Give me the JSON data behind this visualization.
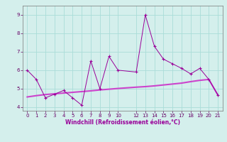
{
  "xlabel": "Windchill (Refroidissement éolien,°C)",
  "bg_color": "#d4efec",
  "grid_color": "#aaddd8",
  "line_color": "#990099",
  "line_color2": "#cc44cc",
  "series1_x": [
    0,
    1,
    2,
    3,
    4,
    5,
    6,
    7,
    8,
    9,
    10,
    12,
    13,
    14,
    15,
    16,
    17,
    18,
    19,
    20,
    21
  ],
  "series1_y": [
    6.0,
    5.5,
    4.5,
    4.7,
    4.9,
    4.5,
    4.1,
    6.5,
    5.0,
    6.75,
    6.0,
    5.9,
    9.0,
    7.3,
    6.6,
    6.35,
    6.1,
    5.8,
    6.1,
    5.5,
    4.65
  ],
  "series2_x": [
    0,
    1,
    2,
    3,
    4,
    5,
    6,
    7,
    8,
    9,
    10,
    12,
    13,
    14,
    15,
    16,
    17,
    18,
    19,
    20,
    21
  ],
  "series2_y": [
    4.55,
    4.62,
    4.68,
    4.72,
    4.76,
    4.8,
    4.84,
    4.88,
    4.93,
    4.97,
    5.01,
    5.08,
    5.11,
    5.15,
    5.2,
    5.25,
    5.3,
    5.38,
    5.45,
    5.5,
    4.65
  ],
  "ylim": [
    3.8,
    9.5
  ],
  "yticks": [
    4,
    5,
    6,
    7,
    8,
    9
  ],
  "xticks": [
    0,
    1,
    2,
    3,
    4,
    5,
    6,
    7,
    8,
    9,
    10,
    12,
    13,
    14,
    15,
    16,
    17,
    18,
    19,
    20,
    21
  ],
  "xlim": [
    -0.5,
    21.5
  ]
}
